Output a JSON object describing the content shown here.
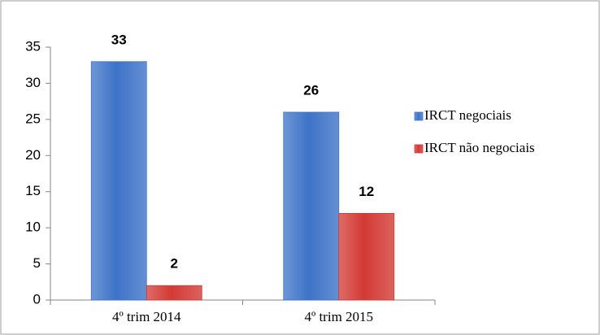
{
  "chart_data": {
    "type": "bar",
    "categories": [
      "4º trim 2014",
      "4º trim 2015"
    ],
    "series": [
      {
        "name": "IRCT negociais",
        "color": "#3e73c8",
        "values": [
          33,
          26
        ]
      },
      {
        "name": "IRCT não negociais",
        "color": "#d33a35",
        "values": [
          2,
          12
        ]
      }
    ],
    "ylim": [
      0,
      35
    ],
    "yticks": [
      0,
      5,
      10,
      15,
      20,
      25,
      30,
      35
    ],
    "grid": false,
    "legend": "right"
  }
}
